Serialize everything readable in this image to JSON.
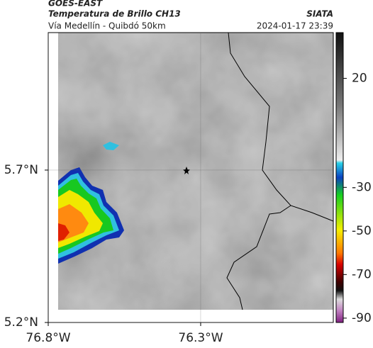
{
  "chart_data": {
    "type": "map",
    "title": "GOES-EAST",
    "subtitle": "Temperatura de Brillo CH13",
    "source": "SIATA",
    "route": "Vía Medellín - Quibdó 50km",
    "timestamp": "2024-01-17 23:39",
    "xlim": [
      -76.8,
      -75.865
    ],
    "ylim": [
      5.2,
      6.151
    ],
    "xticks": [
      {
        "value": -76.8,
        "label": "76.8°W"
      },
      {
        "value": -76.3,
        "label": "76.3°W"
      }
    ],
    "yticks": [
      {
        "value": 5.7,
        "label": "5.7°N"
      },
      {
        "value": 5.2,
        "label": "5.2°N"
      }
    ],
    "grid": true,
    "colorbar": {
      "clim": [
        -92,
        41
      ],
      "ticks": [
        20,
        -30,
        -50,
        -70,
        -90
      ]
    }
  }
}
